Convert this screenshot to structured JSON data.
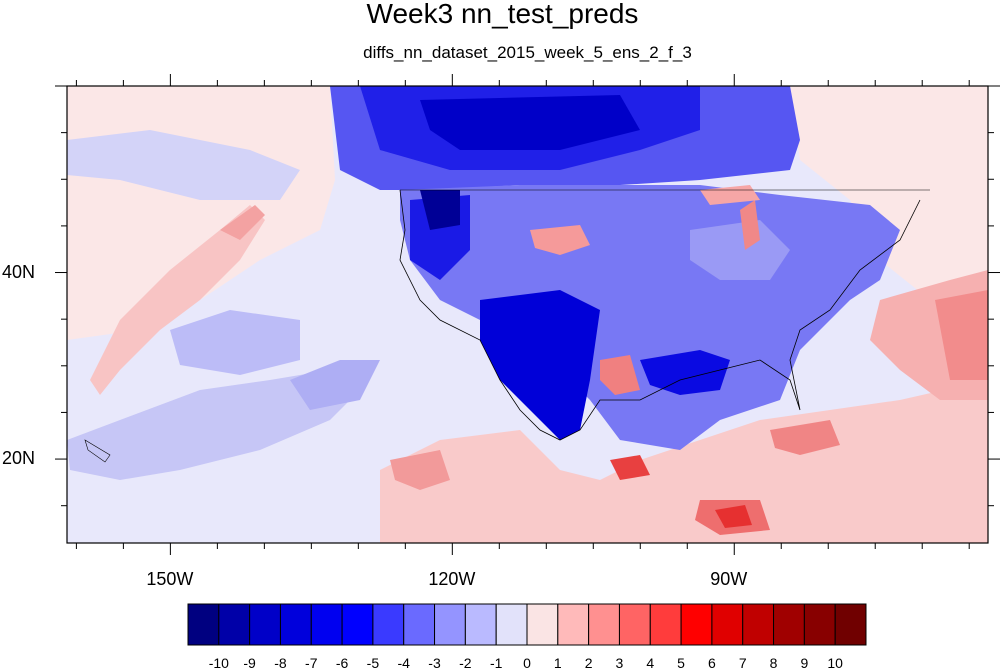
{
  "title": "Week3 nn_test_preds",
  "subtitle": "diffs_nn_dataset_2015_week_5_ens_2_f_3",
  "map": {
    "lon_range": [
      -161,
      -63
    ],
    "lat_range": [
      11,
      60
    ],
    "lon_ticks": [
      {
        "value": -150,
        "label": "150W"
      },
      {
        "value": -120,
        "label": "120W"
      },
      {
        "value": -90,
        "label": "90W"
      }
    ],
    "lat_ticks": [
      {
        "value": 40,
        "label": "40N"
      },
      {
        "value": 20,
        "label": "20N"
      }
    ]
  },
  "colorbar": {
    "labels": [
      "-10",
      "-9",
      "-8",
      "-7",
      "-6",
      "-5",
      "-4",
      "-3",
      "-2",
      "-1",
      "0",
      "1",
      "2",
      "3",
      "4",
      "5",
      "6",
      "7",
      "8",
      "9",
      "10"
    ],
    "colors": [
      "#000080",
      "#0000a8",
      "#0000c8",
      "#0000dc",
      "#0000f0",
      "#0000ff",
      "#3a3aff",
      "#6a6aff",
      "#9494ff",
      "#babaff",
      "#e2e2fa",
      "#fae4e4",
      "#ffbaba",
      "#ff9090",
      "#ff6464",
      "#ff3c3c",
      "#ff0000",
      "#e00000",
      "#c00000",
      "#a00000",
      "#880000",
      "#700000"
    ]
  }
}
